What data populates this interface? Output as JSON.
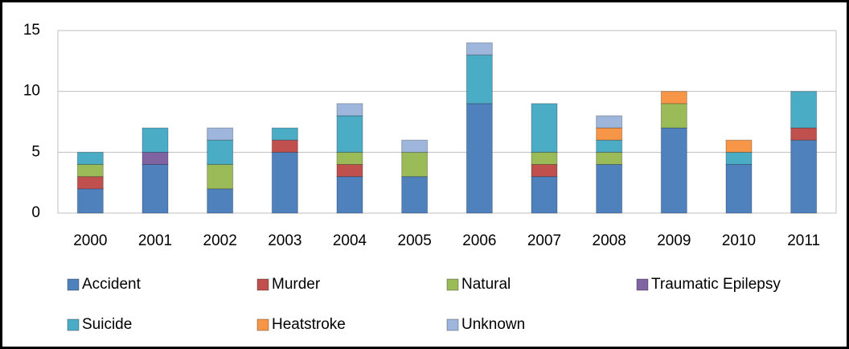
{
  "chart_data": {
    "type": "stacked_bar",
    "categories": [
      "2000",
      "2001",
      "2002",
      "2003",
      "2004",
      "2005",
      "2006",
      "2007",
      "2008",
      "2009",
      "2010",
      "2011"
    ],
    "series": [
      {
        "name": "Accident",
        "color": "#4f81bd",
        "values": [
          2,
          4,
          2,
          5,
          3,
          3,
          9,
          3,
          4,
          7,
          4,
          6
        ]
      },
      {
        "name": "Murder",
        "color": "#c0504d",
        "values": [
          1,
          0,
          0,
          1,
          1,
          0,
          0,
          1,
          0,
          0,
          0,
          1
        ]
      },
      {
        "name": "Natural",
        "color": "#9bbb59",
        "values": [
          1,
          0,
          2,
          0,
          1,
          2,
          0,
          1,
          1,
          2,
          0,
          0
        ]
      },
      {
        "name": "Traumatic Epilepsy",
        "color": "#8064a2",
        "values": [
          0,
          1,
          0,
          0,
          0,
          0,
          0,
          0,
          0,
          0,
          0,
          0
        ]
      },
      {
        "name": "Suicide",
        "color": "#4bacc6",
        "values": [
          1,
          2,
          2,
          1,
          3,
          0,
          4,
          4,
          1,
          0,
          1,
          3
        ]
      },
      {
        "name": "Heatstroke",
        "color": "#f79646",
        "values": [
          0,
          0,
          0,
          0,
          0,
          0,
          0,
          0,
          1,
          1,
          1,
          0
        ]
      },
      {
        "name": "Unknown",
        "color": "#9fb6dc",
        "values": [
          0,
          0,
          1,
          0,
          1,
          1,
          1,
          0,
          1,
          0,
          0,
          0
        ]
      }
    ],
    "ylim": [
      0,
      15
    ],
    "yticks": [
      0,
      5,
      10,
      15
    ],
    "grid": true,
    "legend": "bottom"
  }
}
